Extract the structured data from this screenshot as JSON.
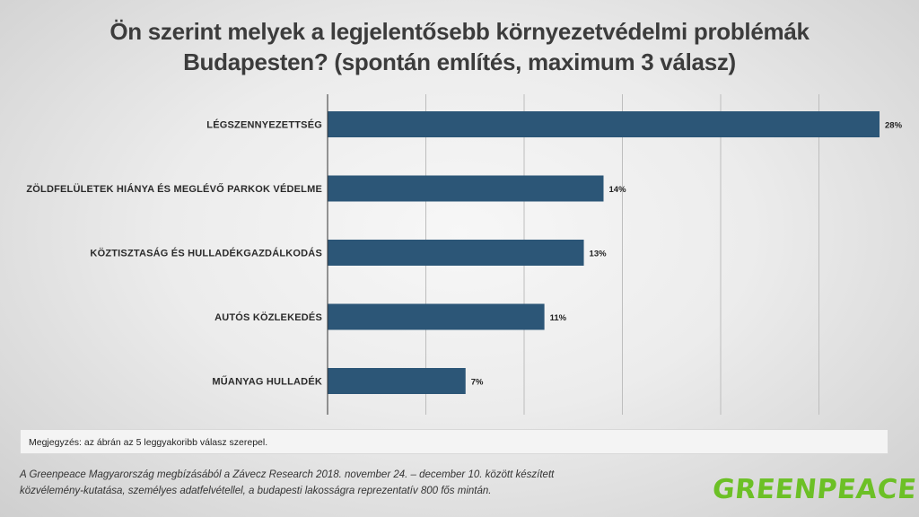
{
  "title": {
    "line1": "Ön szerint melyek a legjelentősebb környezetvédelmi problémák",
    "line2": "Budapesten? (spontán említés, maximum 3 válasz)"
  },
  "chart_data": {
    "type": "bar",
    "orientation": "horizontal",
    "categories": [
      "LÉGSZENNYEZETTSÉG",
      "ZÖLDFELÜLETEK HIÁNYA ÉS MEGLÉVŐ PARKOK VÉDELME",
      "KÖZTISZTASÁG ÉS HULLADÉKGAZDÁLKODÁS",
      "AUTÓS KÖZLEKEDÉS",
      "MŰANYAG HULLADÉK"
    ],
    "values": [
      28,
      14,
      13,
      11,
      7
    ],
    "value_labels": [
      "28%",
      "14%",
      "13%",
      "11%",
      "7%"
    ],
    "xlim": [
      0,
      28
    ],
    "grid": true,
    "bar_color": "#2c5677",
    "grid_color": "#bdbdbd"
  },
  "note": "Megjegyzés: az ábrán az 5 leggyakoribb válasz szerepel.",
  "source": {
    "line1": "A Greenpeace Magyarország megbízásából a Závecz Research 2018. november 24. – december 10. között készített",
    "line2": "közvélemény-kutatása, személyes adatfelvétellel, a budapesti lakosságra reprezentatív 800 fős mintán."
  },
  "logo": {
    "text": "GREENPEACE",
    "color": "#6cc026"
  }
}
